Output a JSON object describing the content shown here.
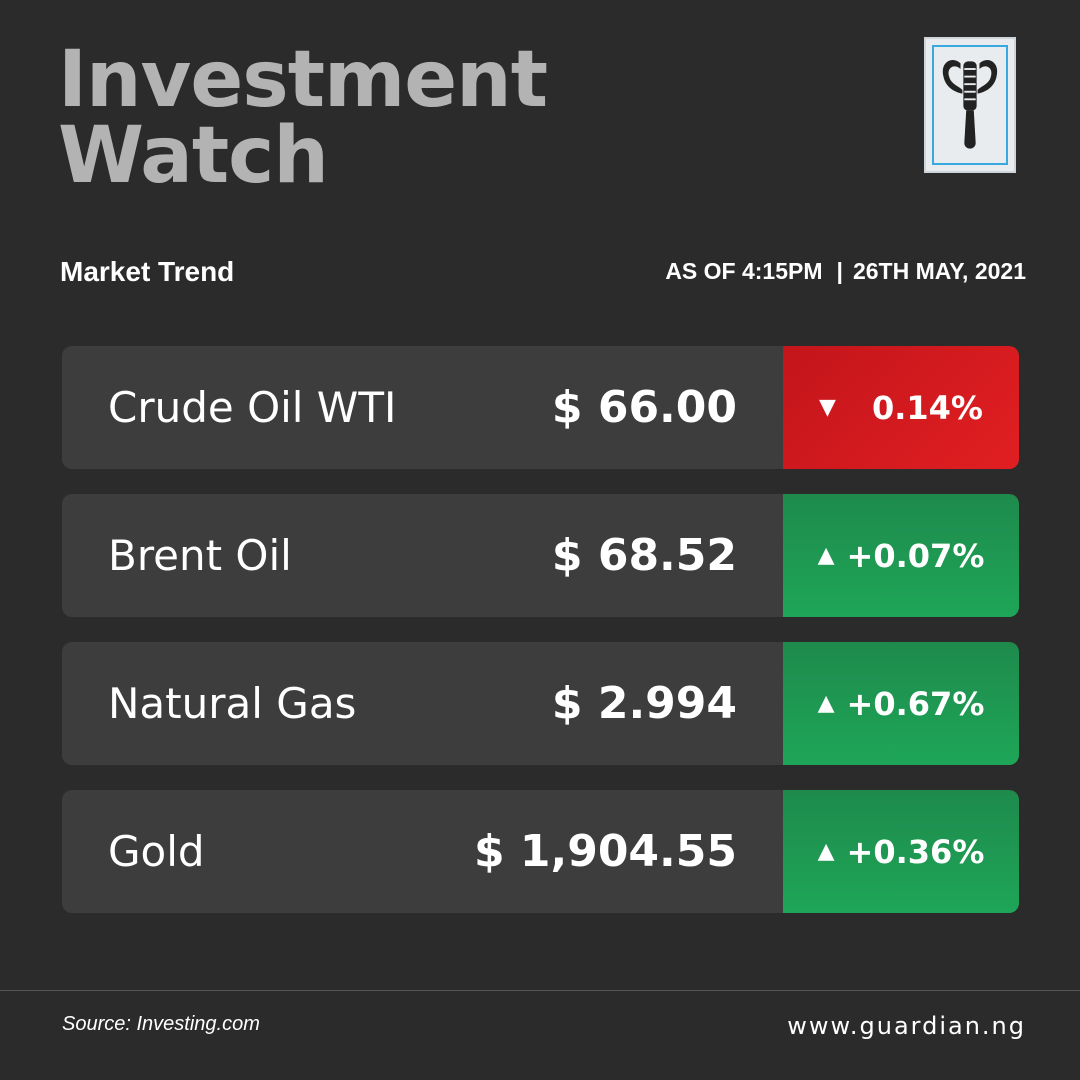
{
  "header": {
    "title_line1": "Investment",
    "title_line2": "Watch",
    "logo_icon": "guardian-emblem-icon"
  },
  "subheader": {
    "subtitle": "Market Trend",
    "as_of": "AS OF 4:15PM",
    "separator": "|",
    "date": "26TH MAY, 2021"
  },
  "rows": [
    {
      "name": "Crude Oil WTI",
      "price": "$ 66.00",
      "direction": "down",
      "arrow": "▼",
      "change": "0.14%"
    },
    {
      "name": "Brent Oil",
      "price": "$ 68.52",
      "direction": "up",
      "arrow": "▲",
      "change": "+0.07%"
    },
    {
      "name": "Natural Gas",
      "price": "$ 2.994",
      "direction": "up",
      "arrow": "▲",
      "change": "+0.67%"
    },
    {
      "name": "Gold",
      "price": "$ 1,904.55",
      "direction": "up",
      "arrow": "▲",
      "change": "+0.36%"
    }
  ],
  "footer": {
    "source": "Source: Investing.com",
    "website": "www.guardian.ng"
  },
  "colors": {
    "background": "#2b2b2b",
    "title": "#b3b3b3",
    "row_background": "#3d3d3d",
    "down": "#d4171d",
    "up": "#1e9a52",
    "logo_border": "#38a9df"
  }
}
